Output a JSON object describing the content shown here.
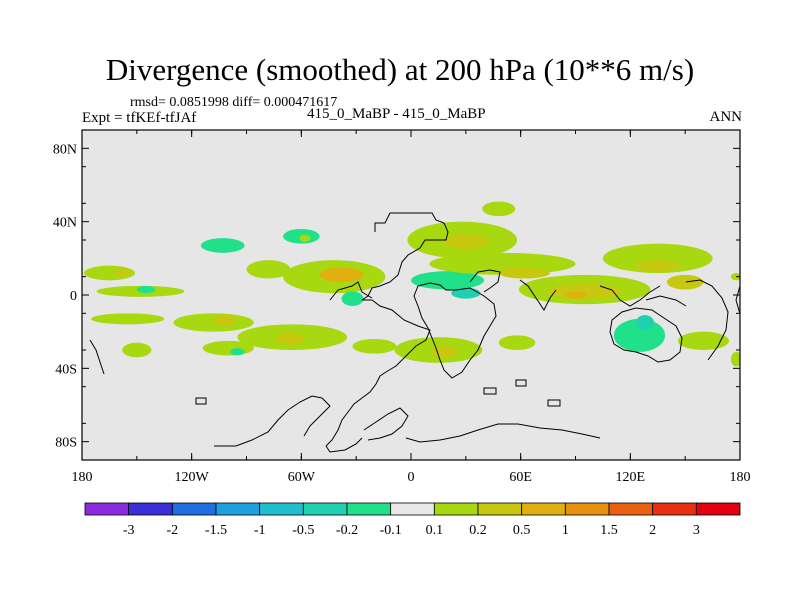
{
  "title": "Divergence (smoothed) at 200 hPa (10**6 m/s)",
  "stats_line": "rmsd= 0.0851998 diff= 0.000471617",
  "experiment": "Expt = tfKEf-tfJAf",
  "case_label": "415_0_MaBP - 415_0_MaBP",
  "season": "ANN",
  "map": {
    "lat_ticks": [
      {
        "lat": 80,
        "label": "80N"
      },
      {
        "lat": 40,
        "label": "40N"
      },
      {
        "lat": 0,
        "label": "0"
      },
      {
        "lat": -40,
        "label": "40S"
      },
      {
        "lat": -80,
        "label": "80S"
      }
    ],
    "lon_ticks": [
      {
        "lon": -180,
        "label": "180"
      },
      {
        "lon": -120,
        "label": "120W"
      },
      {
        "lon": -60,
        "label": "60W"
      },
      {
        "lon": 0,
        "label": "0"
      },
      {
        "lon": 60,
        "label": "60E"
      },
      {
        "lon": 120,
        "label": "120E"
      },
      {
        "lon": 180,
        "label": "180"
      }
    ],
    "background_color": "#e6e6e6",
    "coastline_color": "#000000"
  },
  "colorbar": {
    "colors": [
      "#8a2be2",
      "#3a2fd9",
      "#1f6fe0",
      "#1e9fe0",
      "#1fbfd0",
      "#20d0b0",
      "#20e08a",
      "#e8e8e8",
      "#a8d810",
      "#c8c810",
      "#e0b010",
      "#e89010",
      "#e86010",
      "#e83010",
      "#e00010"
    ],
    "labels": [
      "-3",
      "-2",
      "-1.5",
      "-1",
      "-0.5",
      "-0.2",
      "-0.1",
      "0.1",
      "0.2",
      "0.5",
      "1",
      "1.5",
      "2",
      "3"
    ]
  },
  "anomalies": [
    {
      "lon": -165,
      "lat": 12,
      "rx": 14,
      "ry": 4,
      "level": 8
    },
    {
      "lon": -158,
      "lat": 12,
      "rx": 4,
      "ry": 2,
      "level": 9
    },
    {
      "lon": -148,
      "lat": 2,
      "rx": 24,
      "ry": 3,
      "level": 8
    },
    {
      "lon": -145,
      "lat": 3,
      "rx": 5,
      "ry": 2,
      "level": 6
    },
    {
      "lon": -155,
      "lat": -13,
      "rx": 20,
      "ry": 3,
      "level": 8
    },
    {
      "lon": -150,
      "lat": -30,
      "rx": 8,
      "ry": 4,
      "level": 8
    },
    {
      "lon": -108,
      "lat": -15,
      "rx": 22,
      "ry": 5,
      "level": 8
    },
    {
      "lon": -102,
      "lat": -14,
      "rx": 6,
      "ry": 3,
      "level": 9
    },
    {
      "lon": -100,
      "lat": -29,
      "rx": 14,
      "ry": 4,
      "level": 8
    },
    {
      "lon": -95,
      "lat": -31,
      "rx": 4,
      "ry": 2,
      "level": 6
    },
    {
      "lon": -103,
      "lat": 27,
      "rx": 12,
      "ry": 4,
      "level": 6
    },
    {
      "lon": -78,
      "lat": 14,
      "rx": 12,
      "ry": 5,
      "level": 8
    },
    {
      "lon": -60,
      "lat": 32,
      "rx": 10,
      "ry": 4,
      "level": 6
    },
    {
      "lon": -58,
      "lat": 31,
      "rx": 3,
      "ry": 2,
      "level": 8
    },
    {
      "lon": -65,
      "lat": -23,
      "rx": 30,
      "ry": 7,
      "level": 8
    },
    {
      "lon": -66,
      "lat": -24,
      "rx": 8,
      "ry": 3,
      "level": 9
    },
    {
      "lon": -42,
      "lat": 10,
      "rx": 28,
      "ry": 9,
      "level": 8
    },
    {
      "lon": -38,
      "lat": 11,
      "rx": 12,
      "ry": 4,
      "level": 10
    },
    {
      "lon": -32,
      "lat": -2,
      "rx": 6,
      "ry": 4,
      "level": 6
    },
    {
      "lon": -20,
      "lat": -28,
      "rx": 12,
      "ry": 4,
      "level": 8
    },
    {
      "lon": 15,
      "lat": -30,
      "rx": 24,
      "ry": 7,
      "level": 8
    },
    {
      "lon": 18,
      "lat": -31,
      "rx": 7,
      "ry": 3,
      "level": 9
    },
    {
      "lon": 20,
      "lat": 8,
      "rx": 20,
      "ry": 5,
      "level": 6
    },
    {
      "lon": 30,
      "lat": 1,
      "rx": 8,
      "ry": 3,
      "level": 5
    },
    {
      "lon": 28,
      "lat": 30,
      "rx": 30,
      "ry": 10,
      "level": 8
    },
    {
      "lon": 30,
      "lat": 29,
      "rx": 12,
      "ry": 4,
      "level": 9
    },
    {
      "lon": 48,
      "lat": 47,
      "rx": 9,
      "ry": 4,
      "level": 8
    },
    {
      "lon": 50,
      "lat": 17,
      "rx": 40,
      "ry": 6,
      "level": 8
    },
    {
      "lon": 62,
      "lat": 12,
      "rx": 14,
      "ry": 3,
      "level": 9
    },
    {
      "lon": 58,
      "lat": -26,
      "rx": 10,
      "ry": 4,
      "level": 8
    },
    {
      "lon": 95,
      "lat": 3,
      "rx": 36,
      "ry": 8,
      "level": 8
    },
    {
      "lon": 95,
      "lat": 2,
      "rx": 20,
      "ry": 4,
      "level": 9
    },
    {
      "lon": 90,
      "lat": 0,
      "rx": 6,
      "ry": 2,
      "level": 10
    },
    {
      "lon": 135,
      "lat": 20,
      "rx": 30,
      "ry": 8,
      "level": 8
    },
    {
      "lon": 135,
      "lat": 16,
      "rx": 12,
      "ry": 3,
      "level": 9
    },
    {
      "lon": 150,
      "lat": 7,
      "rx": 10,
      "ry": 4,
      "level": 9
    },
    {
      "lon": 125,
      "lat": -22,
      "rx": 14,
      "ry": 9,
      "level": 6
    },
    {
      "lon": 128,
      "lat": -15,
      "rx": 5,
      "ry": 4,
      "level": 5
    },
    {
      "lon": 160,
      "lat": -25,
      "rx": 14,
      "ry": 5,
      "level": 8
    },
    {
      "lon": 178,
      "lat": -35,
      "rx": 3,
      "ry": 4,
      "level": 8
    },
    {
      "lon": 178,
      "lat": 10,
      "rx": 3,
      "ry": 2,
      "level": 8
    }
  ]
}
